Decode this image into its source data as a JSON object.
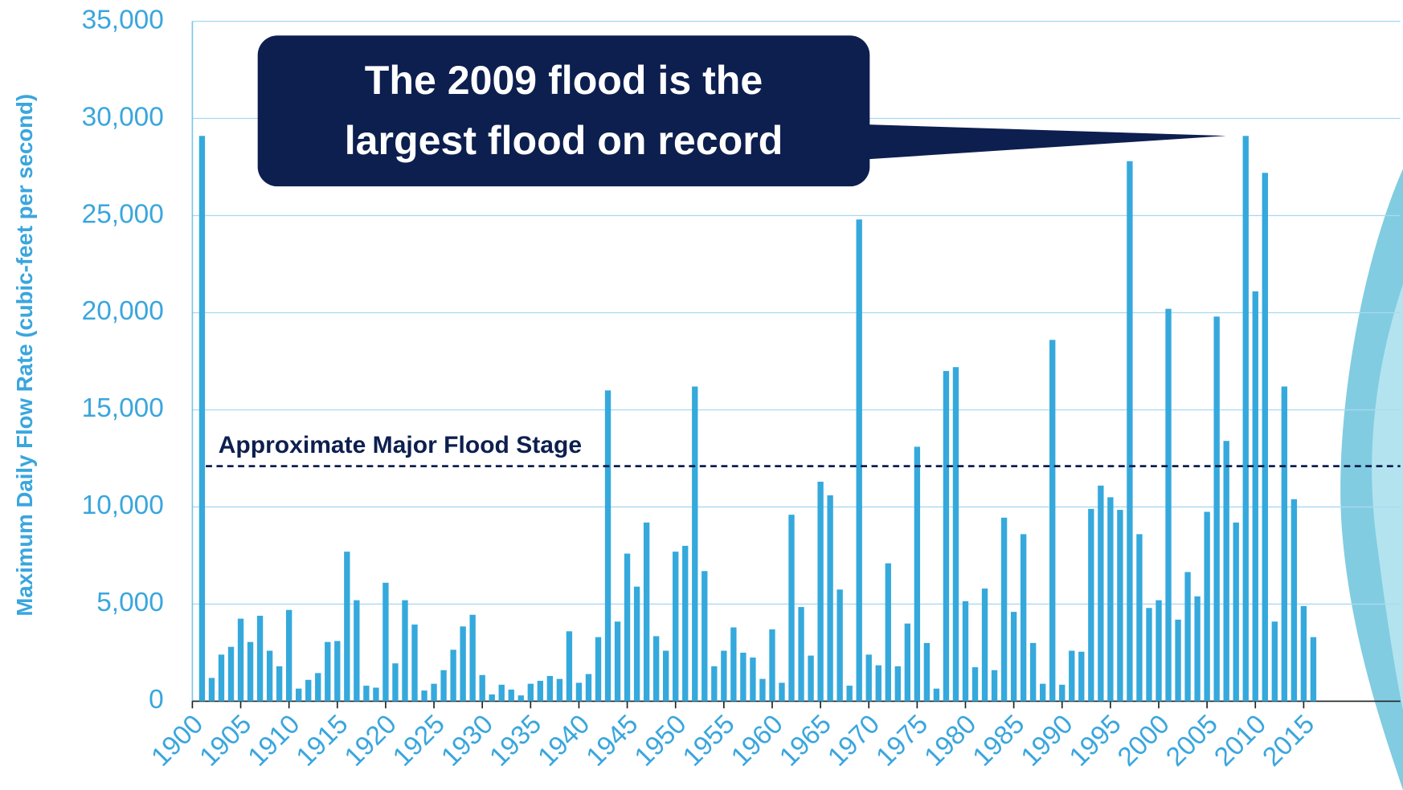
{
  "chart_data": {
    "type": "bar",
    "y_label": "Maximum Daily Flow Rate (cubic-feet per second)",
    "callout": [
      "The 2009 flood is the",
      "largest flood on record"
    ],
    "reference_line": {
      "value": 12100,
      "label": "Approximate Major Flood Stage"
    },
    "color": "#35a9dc",
    "grid": true,
    "xlim": [
      1900,
      2025
    ],
    "xticks": [
      1900,
      1905,
      1910,
      1915,
      1920,
      1925,
      1930,
      1935,
      1940,
      1945,
      1950,
      1955,
      1960,
      1965,
      1970,
      1975,
      1980,
      1985,
      1990,
      1995,
      2000,
      2005,
      2010,
      2015
    ],
    "ylim": [
      0,
      35000
    ],
    "yticks": [
      0,
      {
        "value": 5000,
        "label": "5,000"
      },
      {
        "value": 10000,
        "label": "10,000"
      },
      {
        "value": 15000,
        "label": "15,000"
      },
      {
        "value": 20000,
        "label": "20,000"
      },
      {
        "value": 25000,
        "label": "25,000"
      },
      {
        "value": 30000,
        "label": "30,000"
      },
      {
        "value": 35000,
        "label": "35,000"
      }
    ],
    "x": [
      1901,
      1902,
      1903,
      1904,
      1905,
      1906,
      1907,
      1908,
      1909,
      1910,
      1911,
      1912,
      1913,
      1914,
      1915,
      1916,
      1917,
      1918,
      1919,
      1920,
      1921,
      1922,
      1923,
      1924,
      1925,
      1926,
      1927,
      1928,
      1929,
      1930,
      1931,
      1932,
      1933,
      1934,
      1935,
      1936,
      1937,
      1938,
      1939,
      1940,
      1941,
      1942,
      1943,
      1944,
      1945,
      1946,
      1947,
      1948,
      1949,
      1950,
      1951,
      1952,
      1953,
      1954,
      1955,
      1956,
      1957,
      1958,
      1959,
      1960,
      1961,
      1962,
      1963,
      1964,
      1965,
      1966,
      1967,
      1968,
      1969,
      1970,
      1971,
      1972,
      1973,
      1974,
      1975,
      1976,
      1977,
      1978,
      1979,
      1980,
      1981,
      1982,
      1983,
      1984,
      1985,
      1986,
      1987,
      1988,
      1989,
      1990,
      1991,
      1992,
      1993,
      1994,
      1995,
      1996,
      1997,
      1998,
      1999,
      2000,
      2001,
      2002,
      2003,
      2004,
      2005,
      2006,
      2007,
      2008,
      2009,
      2010,
      2011,
      2012,
      2013,
      2014,
      2015,
      2016
    ],
    "values": [
      29100,
      1200,
      2400,
      2800,
      4250,
      3050,
      4400,
      2600,
      1800,
      4700,
      650,
      1100,
      1450,
      3050,
      3100,
      7700,
      5200,
      800,
      700,
      6100,
      1950,
      5200,
      3950,
      550,
      900,
      1600,
      2650,
      3850,
      4450,
      1350,
      350,
      850,
      600,
      300,
      900,
      1050,
      1300,
      1150,
      3600,
      950,
      1400,
      3300,
      16000,
      4100,
      7600,
      5900,
      9200,
      3350,
      2600,
      7700,
      8000,
      16200,
      6700,
      1800,
      2600,
      3800,
      2500,
      2250,
      1150,
      3700,
      950,
      9600,
      4850,
      2350,
      11300,
      10600,
      5750,
      800,
      24800,
      2400,
      1850,
      7100,
      1800,
      4000,
      13100,
      3000,
      650,
      17000,
      17200,
      5150,
      1750,
      5800,
      1600,
      9450,
      4600,
      8600,
      3000,
      900,
      18600,
      850,
      2600,
      2550,
      9900,
      11100,
      10500,
      9850,
      27800,
      8600,
      4800,
      5200,
      20200,
      4200,
      6650,
      5400,
      9750,
      19800,
      13400,
      9200,
      29100,
      21100,
      27200,
      4100,
      16200,
      10400,
      4900,
      3300
    ]
  }
}
